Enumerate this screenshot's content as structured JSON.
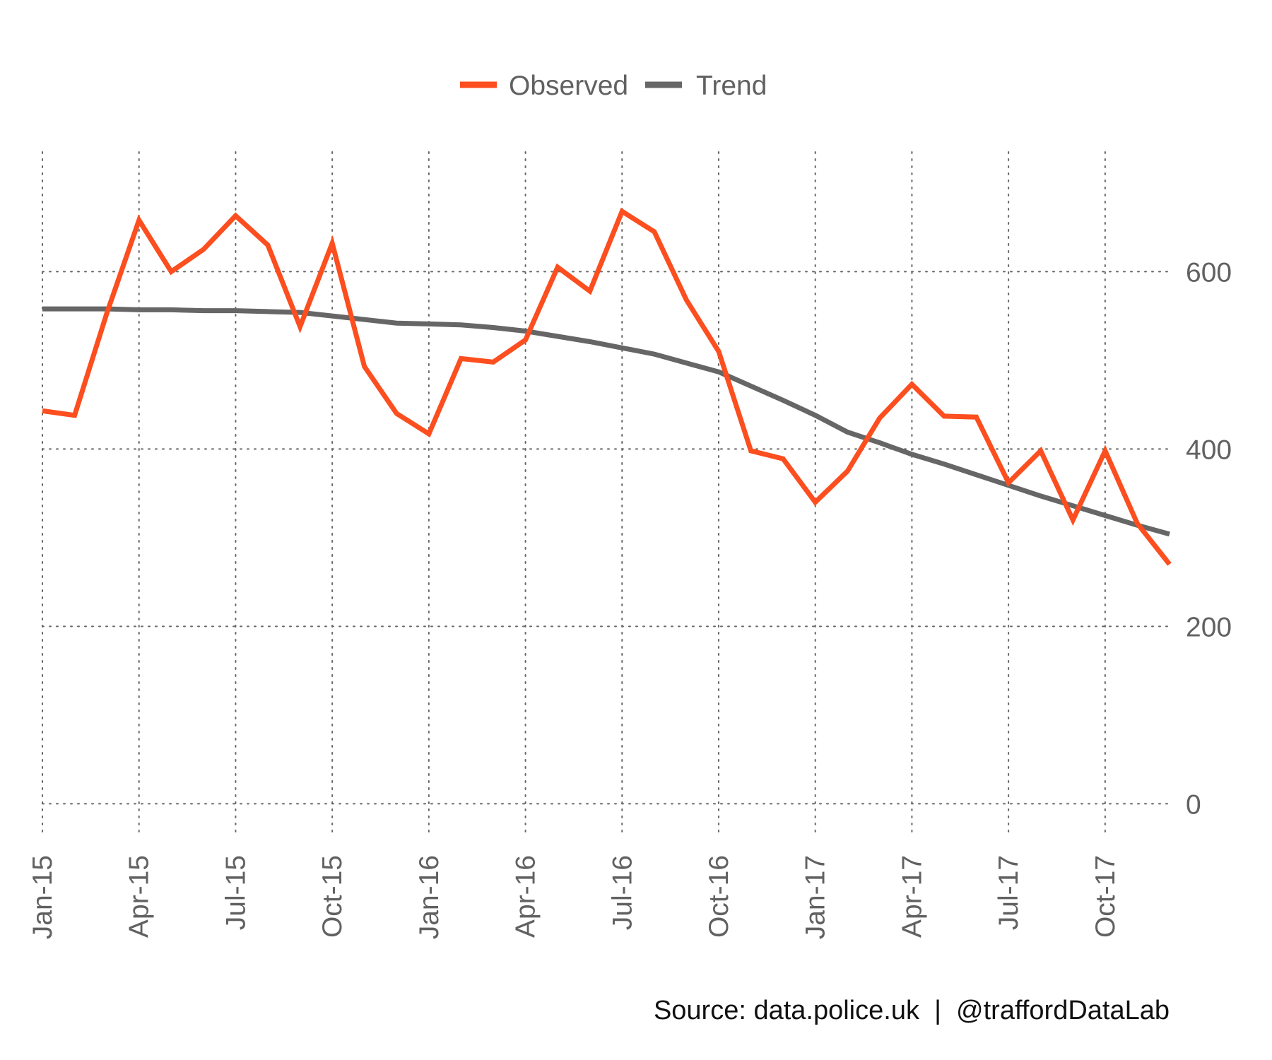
{
  "legend": {
    "observed_label": "Observed",
    "trend_label": "Trend"
  },
  "caption": "Source: data.police.uk  |  @traffordDataLab",
  "colors": {
    "observed": "#FC4E1F",
    "trend": "#666666",
    "grid": "#666666",
    "tick_text": "#616161",
    "caption_text": "#111111"
  },
  "chart_data": {
    "type": "line",
    "title": "",
    "xlabel": "",
    "ylabel": "",
    "x_axis": "date (monthly)",
    "y_axis_side": "right",
    "legend_position": "top",
    "grid": true,
    "ylim": [
      -38,
      735
    ],
    "xlim": [
      "2015-01",
      "2017-12"
    ],
    "y_ticks": [
      0,
      200,
      400,
      600
    ],
    "x_ticks": [
      {
        "x": "2015-01",
        "label": "Jan-15"
      },
      {
        "x": "2015-04",
        "label": "Apr-15"
      },
      {
        "x": "2015-07",
        "label": "Jul-15"
      },
      {
        "x": "2015-10",
        "label": "Oct-15"
      },
      {
        "x": "2016-01",
        "label": "Jan-16"
      },
      {
        "x": "2016-04",
        "label": "Apr-16"
      },
      {
        "x": "2016-07",
        "label": "Jul-16"
      },
      {
        "x": "2016-10",
        "label": "Oct-16"
      },
      {
        "x": "2017-01",
        "label": "Jan-17"
      },
      {
        "x": "2017-04",
        "label": "Apr-17"
      },
      {
        "x": "2017-07",
        "label": "Jul-17"
      },
      {
        "x": "2017-10",
        "label": "Oct-17"
      }
    ],
    "x": [
      "2015-01",
      "2015-02",
      "2015-03",
      "2015-04",
      "2015-05",
      "2015-06",
      "2015-07",
      "2015-08",
      "2015-09",
      "2015-10",
      "2015-11",
      "2015-12",
      "2016-01",
      "2016-02",
      "2016-03",
      "2016-04",
      "2016-05",
      "2016-06",
      "2016-07",
      "2016-08",
      "2016-09",
      "2016-10",
      "2016-11",
      "2016-12",
      "2017-01",
      "2017-02",
      "2017-03",
      "2017-04",
      "2017-05",
      "2017-06",
      "2017-07",
      "2017-08",
      "2017-09",
      "2017-10",
      "2017-11",
      "2017-12"
    ],
    "series": [
      {
        "name": "Observed",
        "color": "#FC4E1F",
        "values": [
          443,
          438,
          553,
          658,
          600,
          625,
          663,
          630,
          538,
          632,
          493,
          440,
          417,
          502,
          498,
          523,
          605,
          578,
          668,
          645,
          568,
          510,
          398,
          389,
          340,
          375,
          435,
          473,
          437,
          436,
          362,
          398,
          320,
          398,
          316,
          270
        ]
      },
      {
        "name": "Trend",
        "color": "#666666",
        "values": [
          558,
          558,
          558,
          557,
          557,
          556,
          556,
          555,
          554,
          550,
          546,
          542,
          541,
          540,
          537,
          533,
          527,
          521,
          514,
          507,
          497,
          487,
          471,
          455,
          438,
          419,
          407,
          394,
          383,
          371,
          359,
          347,
          336,
          325,
          314,
          304
        ]
      }
    ]
  }
}
